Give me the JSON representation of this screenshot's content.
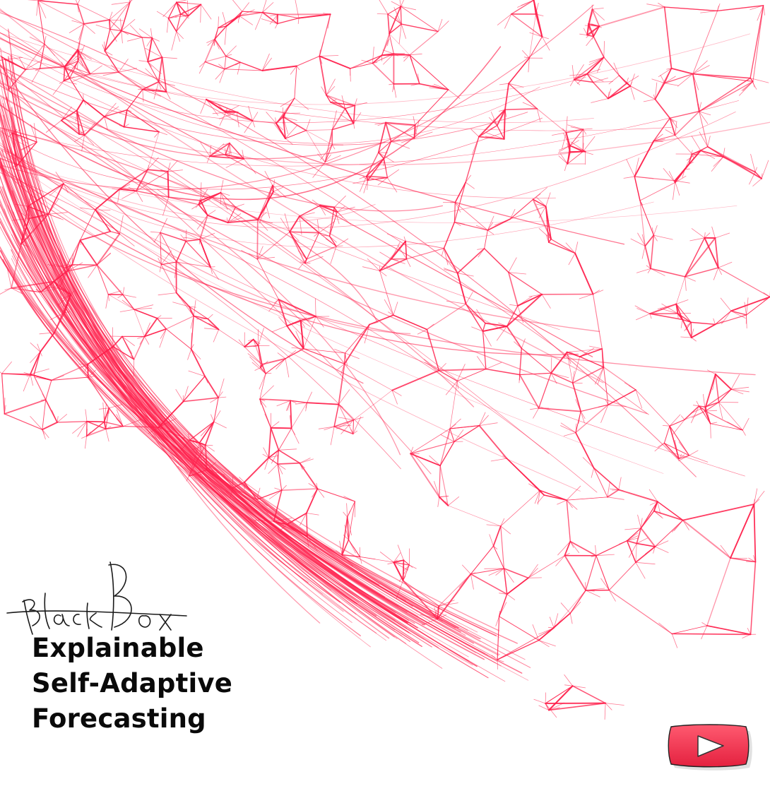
{
  "title": {
    "lines": [
      "Explainable",
      "Self-Adaptive",
      "Forecasting"
    ]
  },
  "signature": {
    "text": "Black Box",
    "style": "handwritten, struck through"
  },
  "play_button": {
    "icon": "play-icon",
    "color": "#f0354f"
  },
  "colors": {
    "web_stroke": "#ff1f4b",
    "background": "#ffffff",
    "title_text": "#0a0a0a"
  },
  "artwork": {
    "description_icon": "neural-web-artwork"
  }
}
